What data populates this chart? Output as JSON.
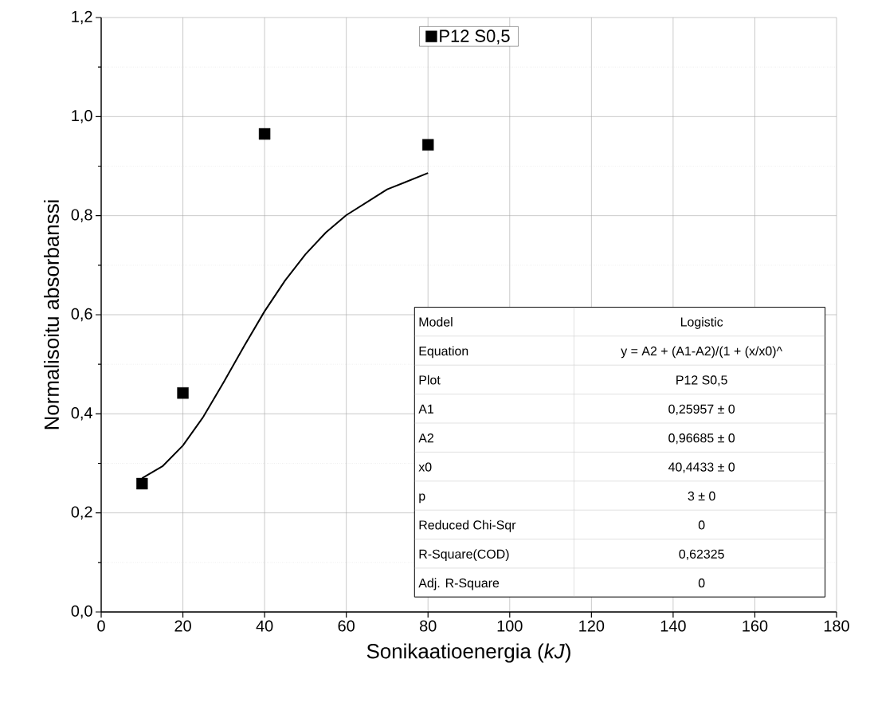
{
  "chart_data": {
    "type": "scatter",
    "xlabel": "Sonikaatioenergia (*kJ*)",
    "ylabel": "Normalisoitu absorbanssi",
    "xlim": [
      0,
      180
    ],
    "xticks": [
      0,
      20,
      40,
      60,
      80,
      100,
      120,
      140,
      160,
      180
    ],
    "ylim": [
      0,
      1.2
    ],
    "yticks": [
      {
        "value": 0,
        "label": "0,0"
      },
      {
        "value": 0.2,
        "label": "0,2"
      },
      {
        "value": 0.4,
        "label": "0,4"
      },
      {
        "value": 0.6,
        "label": "0,6"
      },
      {
        "value": 0.8,
        "label": "0,8"
      },
      {
        "value": 1.0,
        "label": "1,0"
      },
      {
        "value": 1.2,
        "label": "1,2"
      }
    ],
    "grid": true,
    "legend": "top",
    "series": [
      {
        "name": "P12 S0,5",
        "type": "scatter",
        "marker": "square",
        "color": "#000000",
        "x": [
          10,
          20,
          40,
          80
        ],
        "values": [
          0.259,
          0.442,
          0.965,
          0.943
        ]
      },
      {
        "type": "line",
        "marker": "none",
        "line_style": "solid",
        "color": "#000000",
        "x": [
          10,
          15,
          20,
          25,
          30,
          35,
          40,
          45,
          50,
          55,
          60,
          70,
          80
        ],
        "values": [
          0.27,
          0.294,
          0.336,
          0.394,
          0.464,
          0.537,
          0.607,
          0.669,
          0.722,
          0.766,
          0.801,
          0.853,
          0.886
        ]
      }
    ],
    "annotations": [
      "Model",
      "Logistic",
      "Equation",
      "y = A2 + (A1-A2)/(1 + (x/x0)^",
      "Plot",
      "P12 S0,5",
      "A1",
      "0,25957 ± 0",
      "A2",
      "0,96685 ± 0",
      "x0",
      "40,4433 ± 0",
      "p",
      "3 ± 0",
      "Reduced Chi-Sqr",
      "0",
      "R-Square(COD)",
      "0,62325",
      "Adj. R-Square",
      "0"
    ]
  }
}
